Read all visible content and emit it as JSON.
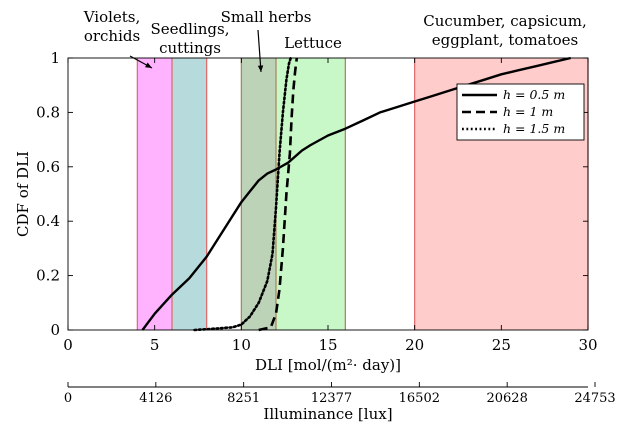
{
  "chart_data": {
    "type": "line",
    "xlabel_main": "DLI",
    "xlabel_unit": "[mol/(m²· day)]",
    "ylabel": "CDF of DLI",
    "xlim": [
      0,
      30
    ],
    "ylim": [
      0,
      1
    ],
    "x_ticks": [
      "0",
      "5",
      "10",
      "15",
      "20",
      "25",
      "30"
    ],
    "y_ticks": [
      "0",
      "0.2",
      "0.4",
      "0.6",
      "0.8",
      "1"
    ],
    "secondary_axis": {
      "label": "Illuminance [lux]",
      "ticks": [
        "0",
        "4126",
        "8251",
        "12377",
        "16502",
        "20628",
        "24753"
      ]
    },
    "bands": [
      {
        "label": "Violets,\norchids",
        "from": 4,
        "to": 6,
        "color": "#ffb3ff"
      },
      {
        "label": "Seedlings,\ncuttings",
        "from": 6,
        "to": 8,
        "color": "#b7dadc"
      },
      {
        "label": "Small herbs",
        "from": 10,
        "to": 12,
        "color": "#c4dcc0"
      },
      {
        "label": "Lettuce",
        "from": 12,
        "to": 16,
        "color": "#c8f8c8"
      },
      {
        "label": "Cucumber, capsicum,\neggplant, tomatoes",
        "from": 20,
        "to": 30,
        "color": "#ffcccc"
      }
    ],
    "band_border_color": "#e06666",
    "herbs_overlap_color": "#b8ccb0",
    "series": [
      {
        "name": "h = 0.5 m",
        "dash": "solid",
        "x": [
          4.3,
          5,
          6,
          7,
          8,
          9,
          10,
          10.5,
          11,
          11.5,
          12,
          12.7,
          13.5,
          14,
          15,
          16,
          17,
          18,
          19,
          20,
          21,
          22,
          23,
          24,
          25,
          26,
          27,
          28,
          29
        ],
        "y": [
          0,
          0.06,
          0.13,
          0.19,
          0.27,
          0.37,
          0.47,
          0.51,
          0.55,
          0.575,
          0.59,
          0.615,
          0.66,
          0.68,
          0.715,
          0.74,
          0.77,
          0.8,
          0.82,
          0.84,
          0.86,
          0.88,
          0.9,
          0.92,
          0.94,
          0.955,
          0.97,
          0.985,
          1.0
        ]
      },
      {
        "name": "h = 1 m",
        "dash": "dashed",
        "x": [
          11,
          11.7,
          12.0,
          12.2,
          12.4,
          12.6,
          12.8,
          12.9,
          13.0,
          13.1,
          13.2
        ],
        "y": [
          0,
          0.01,
          0.06,
          0.15,
          0.3,
          0.5,
          0.65,
          0.78,
          0.88,
          0.95,
          1.0
        ]
      },
      {
        "name": "h = 1.5 m",
        "dash": "dotted",
        "x": [
          7.3,
          8.5,
          9.5,
          10.0,
          10.5,
          11.0,
          11.5,
          11.8,
          12.0,
          12.2,
          12.4,
          12.6,
          12.75,
          12.85
        ],
        "y": [
          0,
          0.005,
          0.01,
          0.02,
          0.05,
          0.1,
          0.18,
          0.28,
          0.45,
          0.65,
          0.8,
          0.92,
          0.98,
          1.0
        ]
      }
    ],
    "legend_position": "top-right"
  }
}
